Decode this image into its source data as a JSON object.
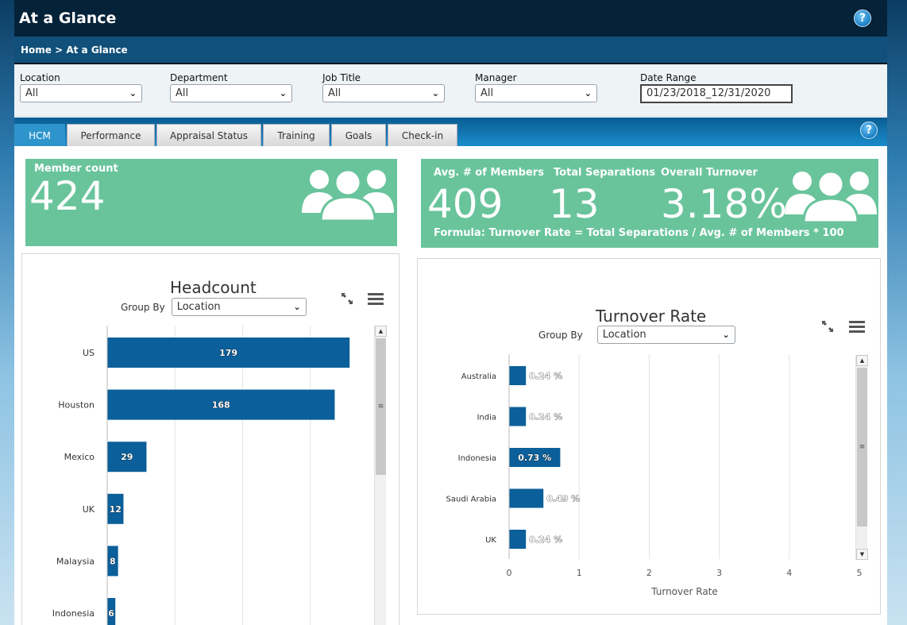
{
  "app": {
    "title": "At a Glance"
  },
  "breadcrumb": {
    "home": "Home",
    "sep": " > ",
    "current": "At a Glance"
  },
  "filters": [
    {
      "label": "Location",
      "value": "All"
    },
    {
      "label": "Department",
      "value": "All"
    },
    {
      "label": "Job Title",
      "value": "All"
    },
    {
      "label": "Manager",
      "value": "All"
    }
  ],
  "date_range": {
    "label": "Date Range",
    "value": "01/23/2018_12/31/2020"
  },
  "tabs": [
    "HCM",
    "Performance",
    "Appraisal Status",
    "Training",
    "Goals",
    "Check-in"
  ],
  "active_tab": "HCM",
  "kpi_member": {
    "label": "Member count",
    "value": "424"
  },
  "kpi_turnover": {
    "avg_label": "Avg. # of Members",
    "avg_value": "409",
    "sep_label": "Total Separations",
    "sep_value": "13",
    "turn_label": "Overall Turnover",
    "turn_value": "3.18%",
    "formula": "Formula: Turnover Rate = Total Separations / Avg. # of Members * 100"
  },
  "headcount": {
    "title": "Headcount",
    "group_by_label": "Group By",
    "group_by_value": "Location"
  },
  "turnover": {
    "title": "Turnover Rate",
    "group_by_label": "Group By",
    "group_by_value": "Location"
  },
  "colors": {
    "bar": "#0b5f9a",
    "kpi": "#69c49c",
    "header": "#042238"
  },
  "chart_data": [
    {
      "type": "bar",
      "orientation": "horizontal",
      "title": "Headcount",
      "categories": [
        "US",
        "Houston",
        "Mexico",
        "UK",
        "Malaysia",
        "Indonesia"
      ],
      "values": [
        179,
        168,
        29,
        12,
        8,
        6
      ],
      "xlim": [
        0,
        200
      ],
      "grid": true
    },
    {
      "type": "bar",
      "orientation": "horizontal",
      "title": "Turnover Rate",
      "categories": [
        "Australia",
        "India",
        "Indonesia",
        "Saudi Arabia",
        "UK"
      ],
      "values": [
        0.24,
        0.24,
        0.73,
        0.49,
        0.24
      ],
      "value_labels": [
        "0.24 %",
        "0.24 %",
        "0.73 %",
        "0.49 %",
        "0.24 %"
      ],
      "xlabel": "Turnover Rate",
      "xticks": [
        "0",
        "1",
        "2",
        "3",
        "4",
        "5"
      ],
      "xlim": [
        0,
        5
      ],
      "grid": true
    }
  ]
}
